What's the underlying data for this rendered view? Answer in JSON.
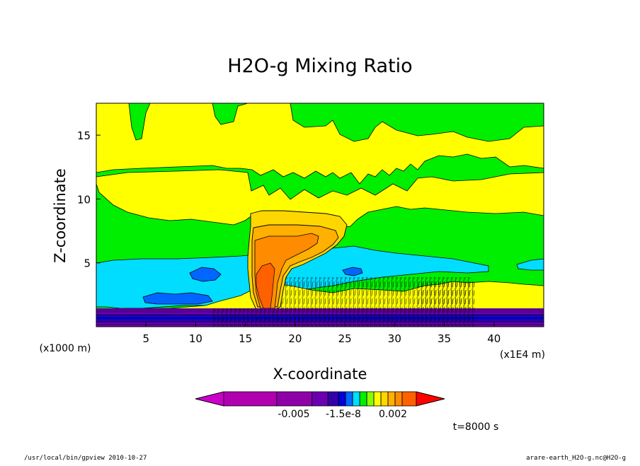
{
  "chart_data": {
    "type": "heatmap",
    "title": "H2O-g Mixing Ratio",
    "xlabel": "X-coordinate",
    "ylabel": "Z-coordinate",
    "x_unit": "(x1E4 m)",
    "y_unit": "(x1000 m)",
    "x_ticks": [
      "5",
      "10",
      "15",
      "20",
      "25",
      "30",
      "35",
      "40"
    ],
    "x_tick_values": [
      5,
      10,
      15,
      20,
      25,
      30,
      35,
      40
    ],
    "y_ticks": [
      "5",
      "10",
      "15"
    ],
    "y_tick_values": [
      5,
      10,
      15
    ],
    "xlim": [
      0,
      45
    ],
    "ylim": [
      0,
      17.5
    ],
    "time_label": "t=8000 s",
    "colorbar": {
      "tick_labels": [
        "-0.005",
        "-1.5e-8",
        "0.002"
      ],
      "colors": [
        "#cc00cc",
        "#b000b0",
        "#8e00a8",
        "#6a00b0",
        "#3300aa",
        "#0000dd",
        "#0066ff",
        "#00ddff",
        "#00ee00",
        "#88ff00",
        "#ffff00",
        "#ffd700",
        "#ffb000",
        "#ff8c00",
        "#ff6000",
        "#ff0000"
      ]
    },
    "regions": [
      {
        "name": "background",
        "color": "#00ee00"
      },
      {
        "name": "upper-band",
        "color": "#ffff00"
      },
      {
        "name": "mid-band",
        "color": "#00ddff"
      },
      {
        "name": "blue-patches",
        "color": "#0066ff"
      },
      {
        "name": "plume",
        "color": "#ffb000"
      },
      {
        "name": "plume-core",
        "color": "#ff8c00"
      },
      {
        "name": "plume-hot",
        "color": "#ff6000"
      },
      {
        "name": "surface-layer",
        "color": "#6a00b0"
      }
    ]
  },
  "footer": {
    "left": "/usr/local/bin/gpview  2010-10-27",
    "right": "arare-earth_H2O-g.nc@H2O-g"
  }
}
